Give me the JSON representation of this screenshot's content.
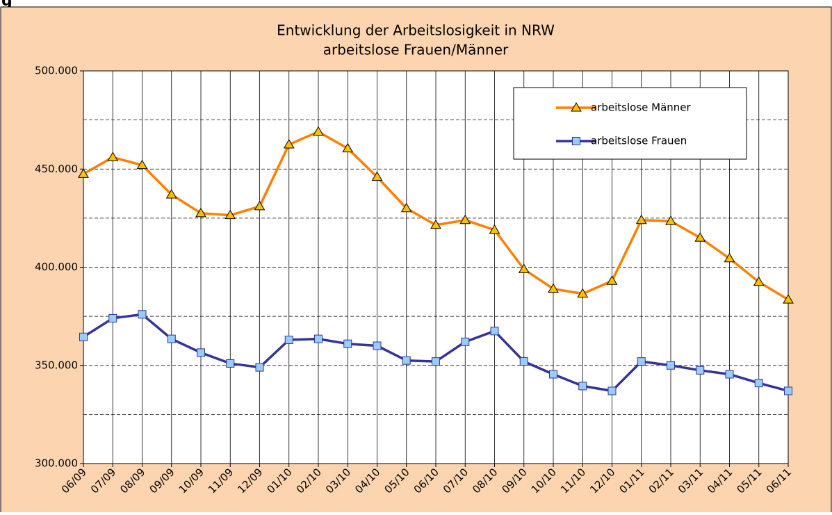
{
  "header_fragment": "g",
  "chart_data": {
    "type": "line",
    "title": "Entwicklung der Arbeitslosigkeit in NRW",
    "subtitle": "arbeitslose Frauen/Männer",
    "categories": [
      "06/09",
      "07/09",
      "08/09",
      "09/09",
      "10/09",
      "11/09",
      "12/09",
      "01/10",
      "02/10",
      "03/10",
      "04/10",
      "05/10",
      "06/10",
      "07/10",
      "08/10",
      "09/10",
      "10/10",
      "11/10",
      "12/10",
      "01/11",
      "02/11",
      "03/11",
      "04/11",
      "05/11",
      "06/11"
    ],
    "series": [
      {
        "name": "arbeitslose Männer",
        "color": "#ff7f00",
        "marker": "triangle",
        "marker_color": "#ffc000",
        "values": [
          447500,
          456000,
          452000,
          437000,
          427500,
          426500,
          431000,
          462500,
          469000,
          460500,
          446000,
          430000,
          421500,
          424000,
          419000,
          399000,
          389000,
          386500,
          393000,
          424000,
          423500,
          415000,
          404500,
          392500,
          383500
        ]
      },
      {
        "name": "arbeitslose Frauen",
        "color": "#333399",
        "marker": "square",
        "marker_color": "#99ccff",
        "values": [
          364500,
          374000,
          376000,
          363500,
          356500,
          351000,
          349000,
          363000,
          363500,
          361000,
          360000,
          352500,
          352000,
          362000,
          367500,
          352000,
          345500,
          339500,
          337000,
          352000,
          350000,
          347500,
          345500,
          341000,
          337000
        ]
      }
    ],
    "ylim": [
      300000,
      500000
    ],
    "yticks": [
      {
        "value": 300000,
        "label": "300.000"
      },
      {
        "value": 350000,
        "label": "350.000"
      },
      {
        "value": 400000,
        "label": "400.000"
      },
      {
        "value": 450000,
        "label": "450.000"
      },
      {
        "value": 500000,
        "label": "500.000"
      }
    ],
    "minor_yticks": [
      325000,
      375000,
      425000,
      475000
    ],
    "grid": true,
    "legend": "top-right"
  }
}
